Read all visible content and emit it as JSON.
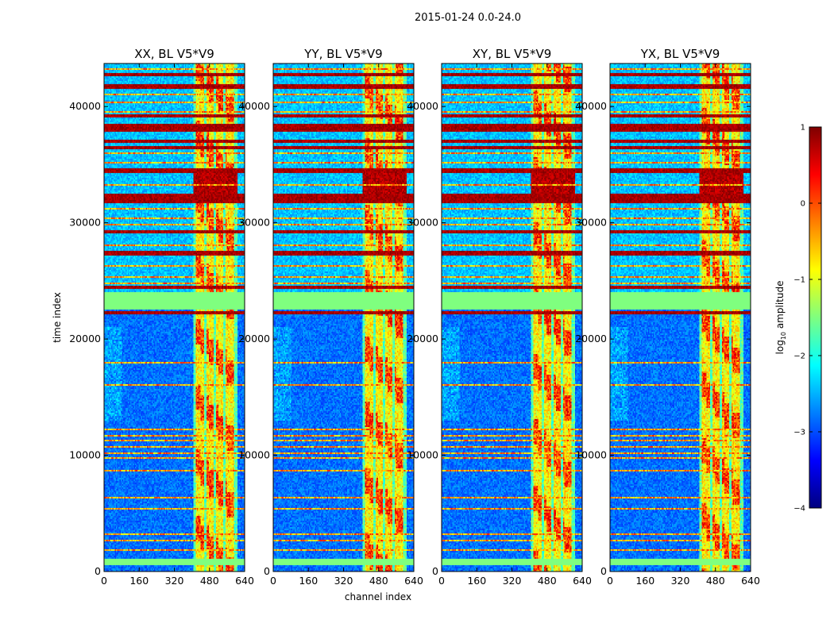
{
  "chart_data": {
    "type": "heatmap",
    "suptitle": "2015-01-24 0.0-24.0",
    "xlabel": "channel index",
    "ylabel": "time index",
    "xlim": [
      0,
      640
    ],
    "ylim": [
      0,
      43700
    ],
    "xticks": [
      0,
      160,
      320,
      480,
      640
    ],
    "xtick_labels": [
      "0",
      "160",
      "320",
      "480",
      "640"
    ],
    "yticks": [
      0,
      10000,
      20000,
      30000,
      40000
    ],
    "ytick_labels": [
      "0",
      "10000",
      "20000",
      "30000",
      "40000"
    ],
    "panels": [
      {
        "title": "XX, BL V5*V9",
        "burst_seed": 11
      },
      {
        "title": "YY, BL V5*V9",
        "burst_seed": 23
      },
      {
        "title": "XY, BL V5*V9",
        "burst_seed": 37
      },
      {
        "title": "YX, BL V5*V9",
        "burst_seed": 51
      }
    ],
    "rfi_channel_band": [
      405,
      605
    ],
    "rfi_channel_columns": [
      [
        405,
        420
      ],
      [
        455,
        465
      ],
      [
        500,
        510
      ],
      [
        540,
        555
      ],
      [
        590,
        605
      ]
    ],
    "flagged_time_ranges": [
      [
        500,
        1100
      ],
      [
        22500,
        24000
      ]
    ],
    "flagged_value": -1.5,
    "strong_rfi_time_rows": [
      22300,
      24400,
      27400,
      29200,
      31900,
      32300,
      34500,
      36500,
      37000,
      38000,
      38300,
      39200,
      41700,
      42700
    ],
    "weak_rfi_time_rows": [
      1900,
      2600,
      3200,
      5400,
      6400,
      8700,
      9800,
      10200,
      10700,
      11200,
      11700,
      12200,
      16000,
      18000,
      24800,
      25300,
      26300,
      28000,
      29800,
      30400,
      31200,
      33200,
      35200,
      36000,
      39600,
      40400,
      41000,
      43200
    ],
    "colorbar": {
      "label": "log",
      "label_sub": "10",
      "label_rest": " amplitude",
      "vmin": -4,
      "vmax": 1,
      "ticks": [
        1,
        0,
        -1,
        -2,
        -3,
        -4
      ],
      "tick_labels": [
        "1",
        "0",
        "−1",
        "−2",
        "−3",
        "−4"
      ],
      "colormap": "jet"
    },
    "colors": {
      "flag": "#a0ff57",
      "jet_stops": [
        "#00007f",
        "#0000ff",
        "#007fff",
        "#00ffff",
        "#7fff7f",
        "#ffff00",
        "#ff7f00",
        "#ff0000",
        "#7f0000"
      ]
    }
  }
}
